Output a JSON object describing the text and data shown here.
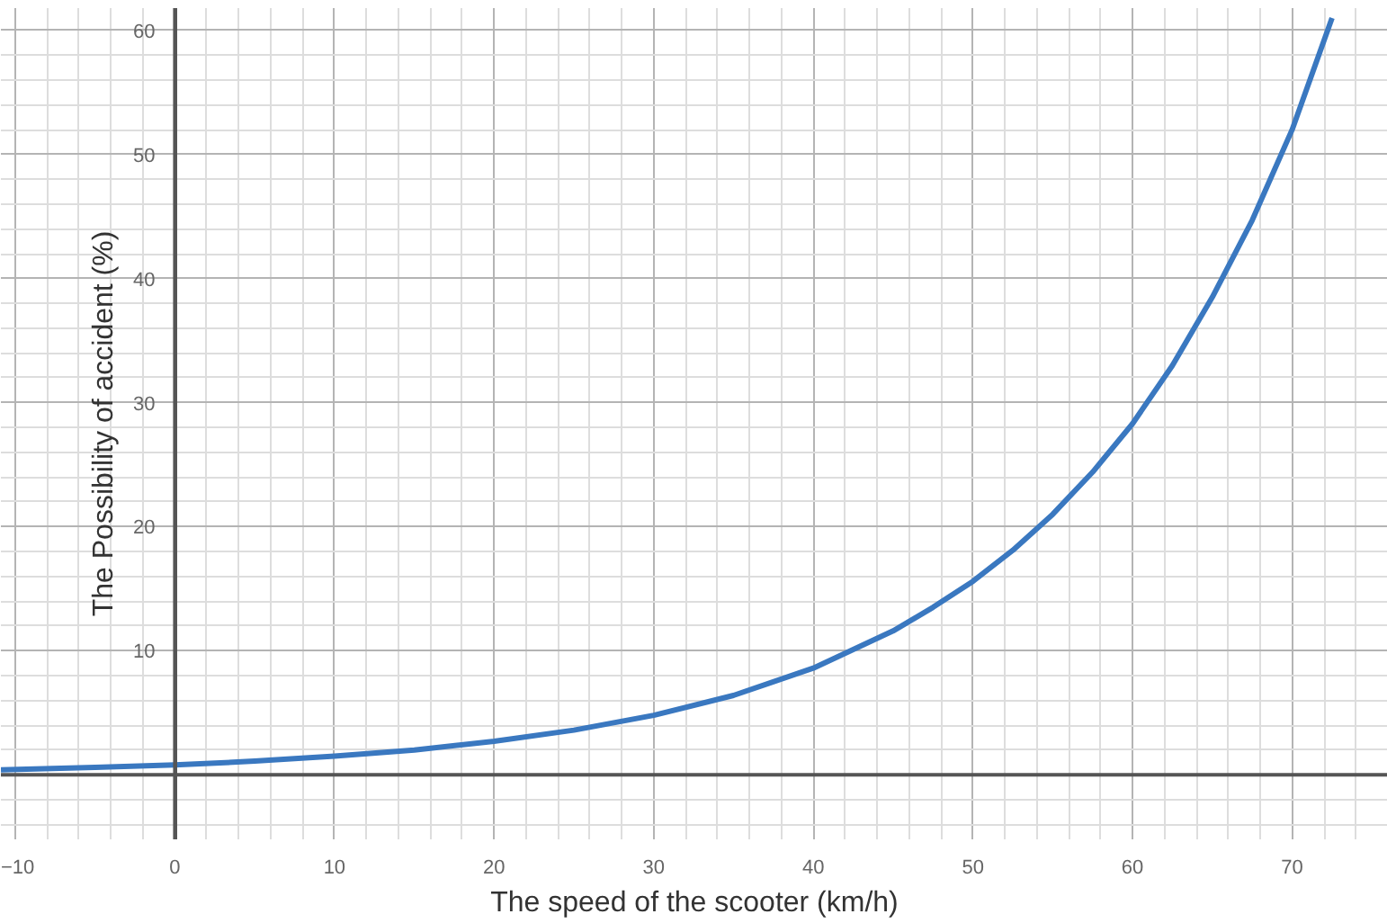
{
  "chart_data": {
    "type": "line",
    "xlabel": "The speed of the scooter (km/h)",
    "ylabel": "The Possibility of accident (%)",
    "xlim": [
      -10.9,
      76
    ],
    "ylim": [
      -5.2,
      61.8
    ],
    "xticks": [
      -10,
      0,
      10,
      20,
      30,
      40,
      50,
      60,
      70
    ],
    "yticks": [
      10,
      20,
      30,
      40,
      50,
      60
    ],
    "grid": true,
    "line_style": "solid",
    "marker": "none",
    "series": [
      {
        "color": "#3a78c0",
        "x": [
          -10.9,
          -5,
          0,
          5,
          10,
          15,
          20,
          25,
          30,
          35,
          40,
          45,
          47.5,
          50,
          52.5,
          55,
          57.5,
          60,
          62.5,
          65,
          67.5,
          70,
          72.5
        ],
        "values": [
          0.4,
          0.6,
          0.8,
          1.1,
          1.5,
          2.0,
          2.7,
          3.6,
          4.8,
          6.4,
          8.6,
          11.6,
          13.5,
          15.6,
          18.1,
          21.0,
          24.4,
          28.3,
          33.0,
          38.5,
          44.7,
          52.0,
          61.0
        ]
      }
    ]
  }
}
